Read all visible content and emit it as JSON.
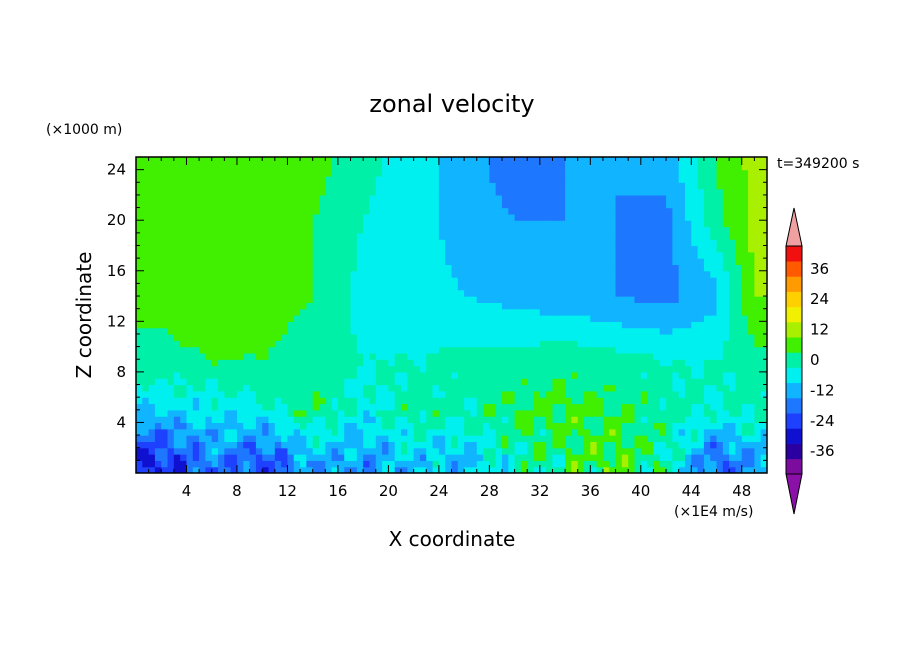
{
  "chart_data": {
    "type": "heatmap",
    "title": "zonal velocity",
    "xlabel": "X coordinate",
    "ylabel": "Z coordinate",
    "y_unit": "(×1000 m)",
    "time_label": "t=349200 s",
    "colorbar_unit": "(×1E4 m/s)",
    "xlim": [
      0,
      50
    ],
    "ylim": [
      0,
      25
    ],
    "x_ticks": [
      4,
      8,
      12,
      16,
      20,
      24,
      28,
      32,
      36,
      40,
      44,
      48
    ],
    "y_ticks": [
      4,
      8,
      12,
      16,
      20,
      24
    ],
    "colorbar_levels": [
      -42,
      -36,
      -30,
      -24,
      -18,
      -12,
      -6,
      0,
      6,
      12,
      18,
      24,
      30,
      36,
      42
    ],
    "colorbar_labels": [
      36,
      24,
      12,
      0,
      -12,
      -24,
      -36
    ],
    "colorbar_colors": [
      "#7b0c9e",
      "#2a00a0",
      "#1010d0",
      "#1e40ff",
      "#1e78ff",
      "#10b4ff",
      "#00f0f0",
      "#00f0a8",
      "#40f000",
      "#a8f000",
      "#f0f000",
      "#ffd000",
      "#ff9a00",
      "#ff5a00",
      "#f01010"
    ],
    "colorbar_extend_colors": {
      "min": "#8a10a8",
      "max": "#f0a0a0"
    },
    "field": {
      "x": [
        2,
        6,
        10,
        14,
        18,
        22,
        26,
        30,
        34,
        38,
        42,
        46,
        49
      ],
      "z": [
        1,
        5,
        9,
        14,
        20,
        24
      ],
      "u": [
        [
          -24,
          -14,
          -20,
          -10,
          -12,
          -6,
          -8,
          0,
          6,
          8,
          2,
          -18,
          -10
        ],
        [
          -6,
          -4,
          -2,
          6,
          -2,
          4,
          2,
          6,
          8,
          6,
          2,
          0,
          2
        ],
        [
          4,
          6,
          6,
          2,
          0,
          0,
          2,
          2,
          4,
          2,
          0,
          0,
          4
        ],
        [
          8,
          12,
          10,
          6,
          -2,
          -4,
          -6,
          -8,
          -10,
          -12,
          -14,
          -8,
          12
        ],
        [
          6,
          10,
          8,
          6,
          0,
          -4,
          -8,
          -12,
          -12,
          -12,
          -14,
          4,
          14
        ],
        [
          6,
          8,
          10,
          8,
          2,
          -4,
          -8,
          -16,
          -12,
          -12,
          -10,
          6,
          14
        ]
      ]
    }
  }
}
